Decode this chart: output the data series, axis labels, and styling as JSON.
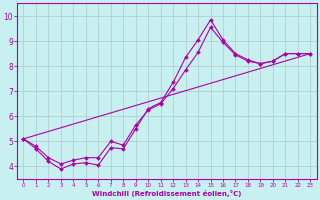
{
  "xlabel": "Windchill (Refroidissement éolien,°C)",
  "bg_color": "#c8f0f0",
  "line_color": "#aa00aa",
  "grid_color": "#b0c8c8",
  "xlim": [
    -0.5,
    23.5
  ],
  "ylim": [
    3.5,
    10.5
  ],
  "yticks": [
    4,
    5,
    6,
    7,
    8,
    9,
    10
  ],
  "xticks": [
    0,
    1,
    2,
    3,
    4,
    5,
    6,
    7,
    8,
    9,
    10,
    11,
    12,
    13,
    14,
    15,
    16,
    17,
    18,
    19,
    20,
    21,
    22,
    23
  ],
  "line1_x": [
    0,
    1,
    2,
    3,
    4,
    5,
    6,
    7,
    8,
    9,
    10,
    11,
    12,
    13,
    14,
    15,
    16,
    17,
    18,
    19,
    20,
    21,
    22,
    23
  ],
  "line1_y": [
    5.1,
    4.7,
    4.2,
    3.9,
    4.1,
    4.15,
    4.05,
    4.75,
    4.7,
    5.5,
    6.3,
    6.55,
    7.35,
    8.35,
    9.05,
    9.85,
    9.05,
    8.5,
    8.25,
    8.1,
    8.2,
    8.5,
    8.5,
    8.5
  ],
  "line2_x": [
    0,
    1,
    2,
    3,
    4,
    5,
    6,
    7,
    8,
    9,
    10,
    11,
    12,
    13,
    14,
    15,
    16,
    17,
    18,
    19,
    20,
    21,
    22,
    23
  ],
  "line2_y": [
    5.1,
    4.8,
    4.35,
    4.1,
    4.25,
    4.35,
    4.35,
    5.0,
    4.85,
    5.65,
    6.25,
    6.5,
    7.1,
    7.85,
    8.55,
    9.55,
    8.95,
    8.45,
    8.2,
    8.1,
    8.2,
    8.5,
    8.5,
    8.5
  ],
  "line3_x": [
    0,
    23
  ],
  "line3_y": [
    5.1,
    8.5
  ],
  "markersize": 2.0,
  "linewidth": 0.8
}
